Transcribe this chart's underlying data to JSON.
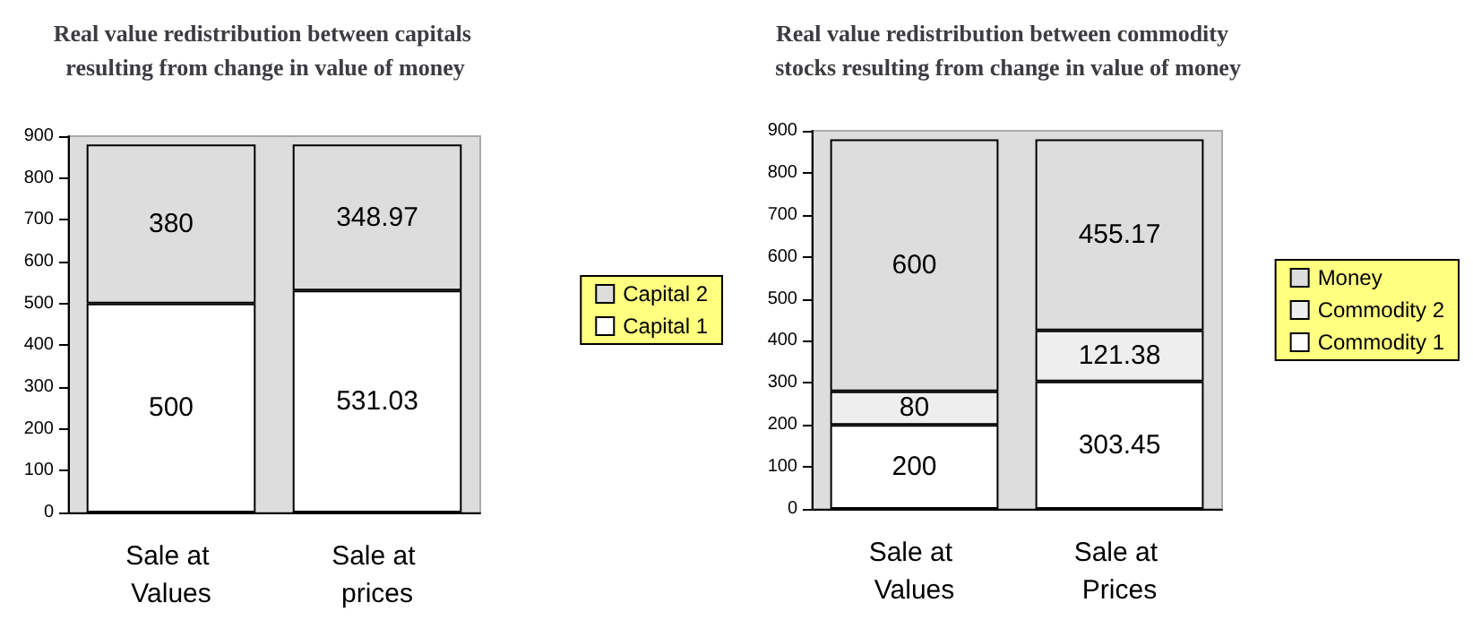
{
  "chart_data": [
    {
      "type": "bar",
      "title": "Real value redistribution between capitals resulting from change in value of money",
      "categories": [
        "Sale at Values",
        "Sale at prices"
      ],
      "stacked": true,
      "data_labels": true,
      "legend": "right",
      "grid": false,
      "ylim": [
        0,
        900
      ],
      "yticks": [
        0,
        100,
        200,
        300,
        400,
        500,
        600,
        700,
        800,
        900
      ],
      "series": [
        {
          "name": "Capital 1",
          "color": "#ffffff",
          "values": [
            500,
            531.03
          ]
        },
        {
          "name": "Capital 2",
          "color": "#dddddd",
          "values": [
            380,
            348.97
          ]
        }
      ]
    },
    {
      "type": "bar",
      "title": "Real value redistribution between commodity  stocks resulting from change in value of money",
      "categories": [
        "Sale at Values",
        "Sale at Prices"
      ],
      "stacked": true,
      "data_labels": true,
      "legend": "right",
      "grid": false,
      "ylim": [
        0,
        900
      ],
      "yticks": [
        0,
        100,
        200,
        300,
        400,
        500,
        600,
        700,
        800,
        900
      ],
      "series": [
        {
          "name": "Commodity 1",
          "color": "#ffffff",
          "values": [
            200,
            303.45
          ]
        },
        {
          "name": "Commodity 2",
          "color": "#eeeeee",
          "values": [
            80,
            121.38
          ]
        },
        {
          "name": "Money",
          "color": "#dddddd",
          "values": [
            600,
            455.17
          ]
        }
      ]
    }
  ]
}
